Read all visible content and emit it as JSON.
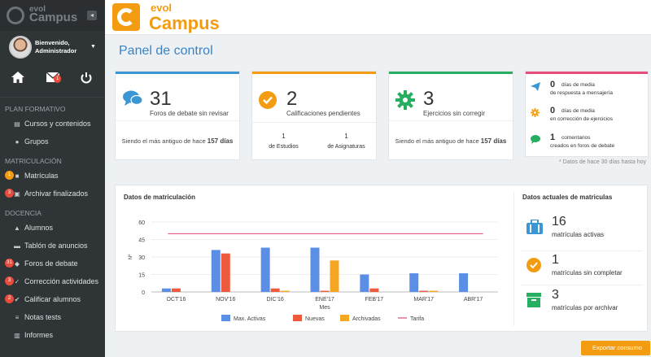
{
  "brand": {
    "name_top": "evol",
    "name_bottom": "Campus",
    "accent": "#f39c12"
  },
  "sidebar": {
    "logo_top": "evol",
    "logo_bottom": "Campus",
    "user_line1": "Bienvenido,",
    "user_line2": "Administrador",
    "mail_badge": "1",
    "sections": [
      {
        "title": "PLAN FORMATIVO"
      },
      {
        "title": "MATRICULACIÓN"
      },
      {
        "title": "DOCENCIA"
      }
    ],
    "items": [
      {
        "label": "Cursos y contenidos",
        "icon": "database-icon"
      },
      {
        "label": "Grupos",
        "icon": "users-icon"
      },
      {
        "label": "Matrículas",
        "icon": "folder-icon",
        "badge": "1"
      },
      {
        "label": "Archivar finalizados",
        "icon": "archive-icon",
        "badge": "3"
      },
      {
        "label": "Alumnos",
        "icon": "graduation-icon"
      },
      {
        "label": "Tablón de anuncios",
        "icon": "board-icon"
      },
      {
        "label": "Foros de debate",
        "icon": "comments-icon",
        "badge": "31"
      },
      {
        "label": "Corrección actividades",
        "icon": "check-icon",
        "badge": "3"
      },
      {
        "label": "Calificar alumnos",
        "icon": "check-circle-icon",
        "badge": "2"
      },
      {
        "label": "Notas tests",
        "icon": "list-icon"
      },
      {
        "label": "Informes",
        "icon": "chart-icon"
      }
    ]
  },
  "page": {
    "title": "Panel de control"
  },
  "cards": {
    "foros": {
      "value": "31",
      "label": "Foros de debate sin revisar",
      "foot_prefix": "Siendo el más antiguo de hace",
      "foot_value": "157 días",
      "color": "#3a97d4"
    },
    "calif": {
      "value": "2",
      "label": "Calificaciones pendientes",
      "sub1_value": "1",
      "sub1_label": "de Estudios",
      "sub2_value": "1",
      "sub2_label": "de Asignaturas",
      "color": "#f39c12"
    },
    "ejer": {
      "value": "3",
      "label": "Ejercicios sin corregir",
      "foot_prefix": "Siendo el más antiguo de hace",
      "foot_value": "157 días",
      "color": "#27ae60"
    },
    "media": {
      "color": "#e74c7c",
      "rows": [
        {
          "n": "0",
          "t": "días de media",
          "t2": "de respuesta a mensajería"
        },
        {
          "n": "0",
          "t": "días de media",
          "t2": "en corrección de ejercicios"
        },
        {
          "n": "1",
          "t": "comentarios",
          "t2": "creados en foros de debate"
        }
      ],
      "note": "* Datos de hace 30 días hasta hoy"
    }
  },
  "chart_data": {
    "type": "bar",
    "title": "Datos de matriculación",
    "xlabel": "Mes",
    "ylabel": "Nº",
    "ylim": [
      0,
      60
    ],
    "yticks": [
      0,
      15,
      30,
      45,
      60
    ],
    "categories": [
      "OCT'16",
      "NOV'16",
      "DIC'16",
      "ENE'17",
      "FEB'17",
      "MAR'17",
      "ABR'17"
    ],
    "series": [
      {
        "name": "Max. Activas",
        "color": "#5b8fe6",
        "values": [
          3,
          36,
          38,
          38,
          15,
          16,
          16
        ]
      },
      {
        "name": "Nuevas",
        "color": "#f05a3c",
        "values": [
          3,
          33,
          3,
          1,
          3,
          1,
          0
        ]
      },
      {
        "name": "Archivadas",
        "color": "#f5a623",
        "values": [
          0,
          0,
          1,
          27,
          0,
          1,
          0
        ]
      },
      {
        "name": "Tarifa",
        "color": "#e0457b",
        "type": "line",
        "values": [
          50,
          50,
          50,
          50,
          50,
          50,
          50
        ]
      }
    ],
    "legend": "bottom"
  },
  "matriculas": {
    "title": "Datos actuales de matriculas",
    "rows": [
      {
        "n": "16",
        "t": "matrículas activas",
        "color": "#3a97d4"
      },
      {
        "n": "1",
        "t": "matrículas sin completar",
        "color": "#f39c12"
      },
      {
        "n": "3",
        "t": "matrículas por archivar",
        "color": "#27ae60"
      }
    ]
  },
  "export": {
    "label": "Exportar consumo"
  }
}
